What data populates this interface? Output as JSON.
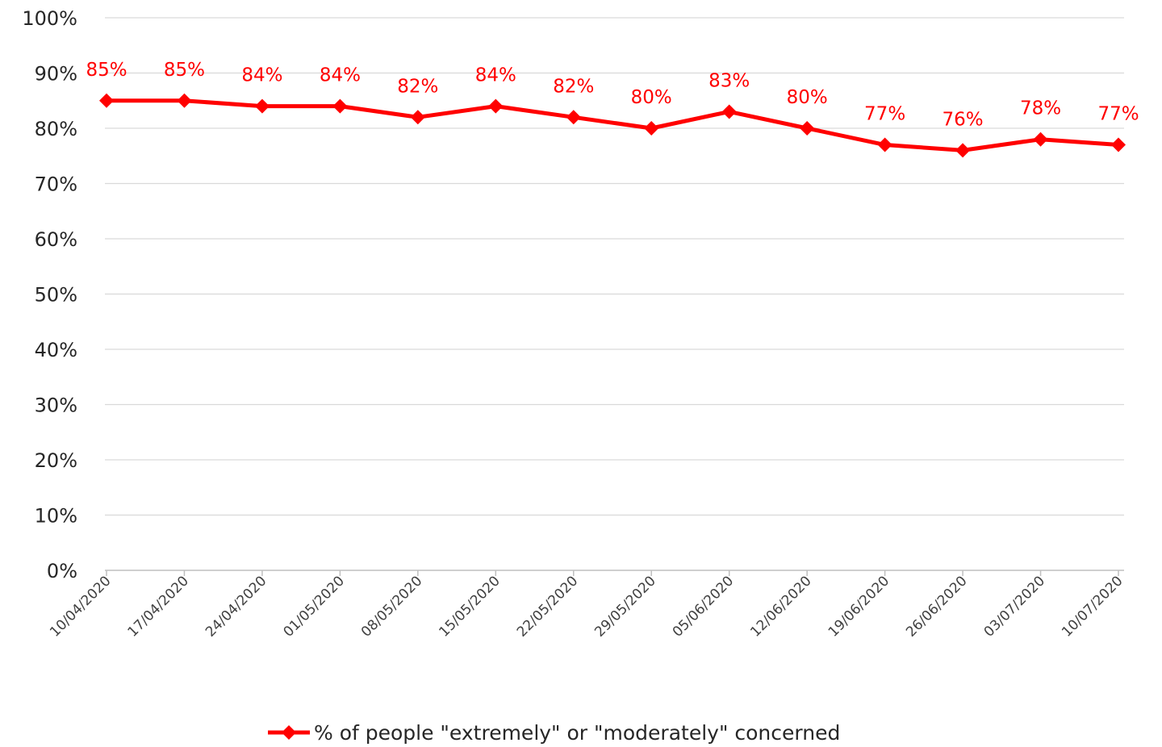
{
  "chart_data": {
    "type": "line",
    "title": "",
    "xlabel": "",
    "ylabel": "",
    "ylim": [
      0,
      100
    ],
    "yticks": [
      "0%",
      "10%",
      "20%",
      "30%",
      "40%",
      "50%",
      "60%",
      "70%",
      "80%",
      "90%",
      "100%"
    ],
    "grid": true,
    "legend_position": "bottom",
    "categories": [
      "10/04/2020",
      "17/04/2020",
      "24/04/2020",
      "01/05/2020",
      "08/05/2020",
      "15/05/2020",
      "22/05/2020",
      "29/05/2020",
      "05/06/2020",
      "12/06/2020",
      "19/06/2020",
      "26/06/2020",
      "03/07/2020",
      "10/07/2020"
    ],
    "series": [
      {
        "name": "% of people \"extremely\" or \"moderately\" concerned",
        "values": [
          85,
          85,
          84,
          84,
          82,
          84,
          82,
          80,
          83,
          80,
          77,
          76,
          78,
          77
        ],
        "data_labels": [
          "85%",
          "85%",
          "84%",
          "84%",
          "82%",
          "84%",
          "82%",
          "80%",
          "83%",
          "80%",
          "77%",
          "76%",
          "78%",
          "77%"
        ],
        "color": "#ff0000",
        "marker": "diamond"
      }
    ],
    "grid_color": "#d9d9d9",
    "axis_color": "#bfbfbf"
  }
}
